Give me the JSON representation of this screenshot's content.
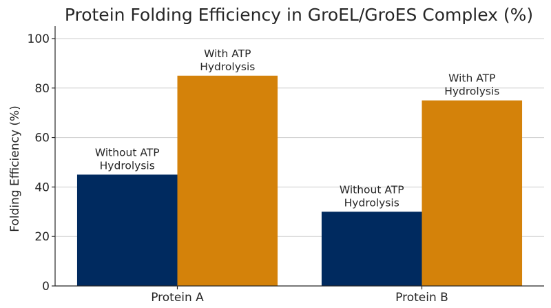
{
  "chart_data": {
    "type": "bar",
    "title": "Protein Folding Efficiency in GroEL/GroES Complex (%)",
    "xlabel": "",
    "ylabel": "Folding Efficiency (%)",
    "categories": [
      "Protein A",
      "Protein B"
    ],
    "ylim": [
      0,
      105
    ],
    "yticks": [
      0,
      20,
      40,
      60,
      80,
      100
    ],
    "grid": "horizontal",
    "series": [
      {
        "values": [
          45,
          30
        ],
        "color": "#002a5f",
        "bar_labels": [
          [
            "Without ATP",
            "Hydrolysis"
          ],
          [
            "Without ATP",
            "Hydrolysis"
          ]
        ]
      },
      {
        "values": [
          85,
          75
        ],
        "color": "#d4820a",
        "bar_labels": [
          [
            "With ATP",
            "Hydrolysis"
          ],
          [
            "With ATP",
            "Hydrolysis"
          ]
        ]
      }
    ]
  }
}
